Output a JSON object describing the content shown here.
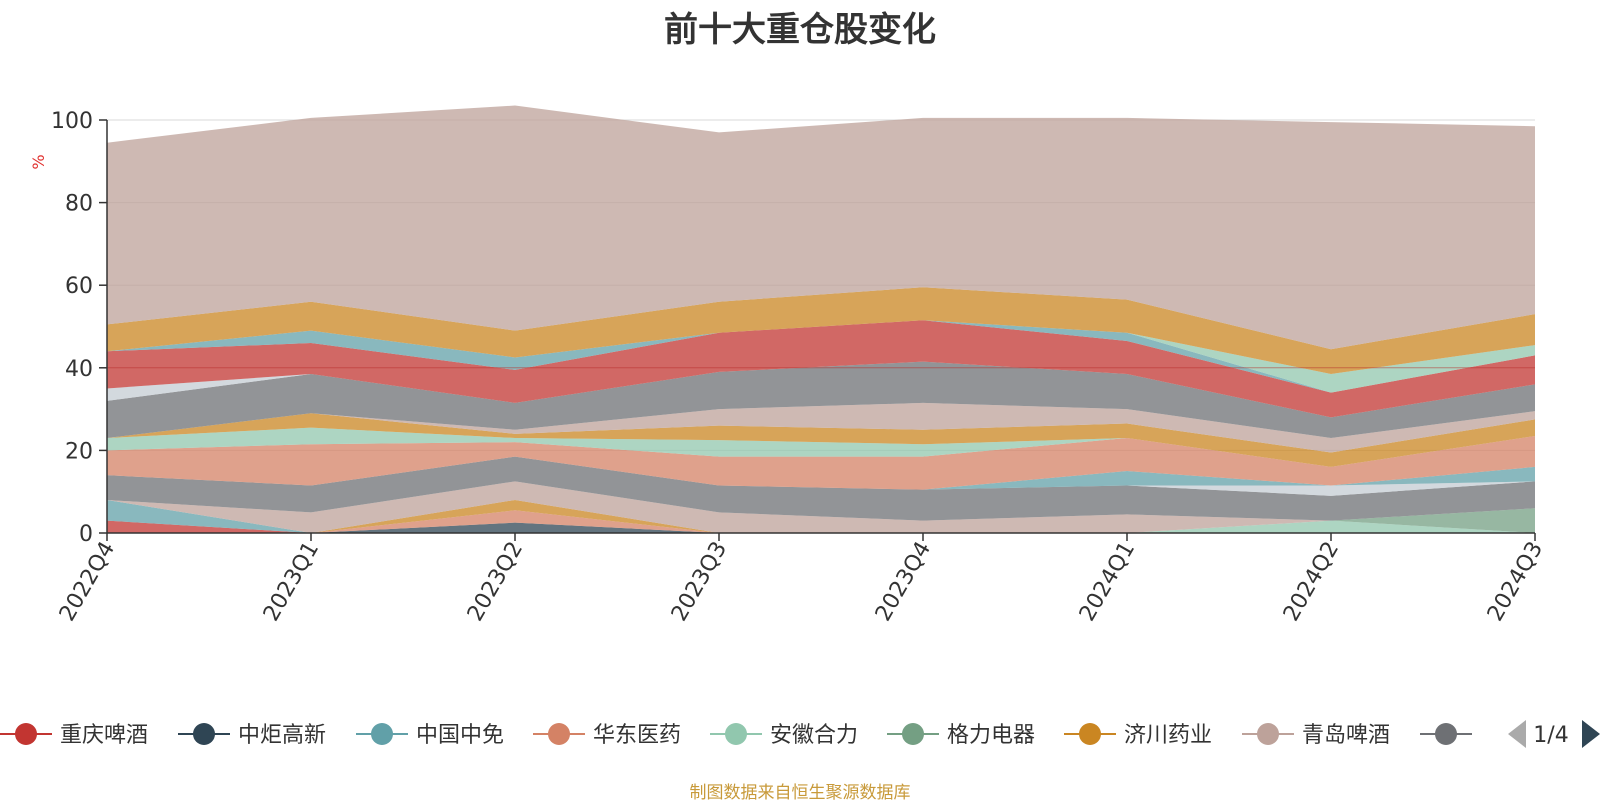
{
  "chart_data": {
    "type": "area",
    "title": "前十大重仓股变化",
    "ylabel": "%",
    "ylim": [
      0,
      100
    ],
    "yticks": [
      "0",
      "20",
      "40",
      "60",
      "80",
      "100"
    ],
    "categories": [
      "2022Q4",
      "2023Q1",
      "2023Q2",
      "2023Q3",
      "2023Q4",
      "2024Q1",
      "2024Q2",
      "2024Q3"
    ],
    "stacked": true,
    "grid": true,
    "series": [
      {
        "name": "重庆啤酒",
        "color": "#c23531",
        "values": [
          3,
          0,
          0,
          0,
          0,
          0,
          0,
          0
        ]
      },
      {
        "name": "中炬高新",
        "color": "#2f4554",
        "values": [
          0,
          0,
          2.5,
          0,
          0,
          0,
          0,
          0
        ]
      },
      {
        "name": "中国中免",
        "color": "#61a0a8",
        "values": [
          5,
          0,
          0,
          0,
          0,
          0,
          0,
          0
        ]
      },
      {
        "name": "华东医药",
        "color": "#d48265",
        "values": [
          0,
          0,
          3,
          0,
          0,
          0,
          0,
          0
        ]
      },
      {
        "name": "安徽合力",
        "color": "#91c7ae",
        "values": [
          0,
          0,
          0,
          0,
          0,
          0,
          3,
          0
        ]
      },
      {
        "name": "格力电器",
        "color": "#749f83",
        "values": [
          0,
          0,
          0,
          0,
          0,
          0,
          0,
          6
        ]
      },
      {
        "name": "济川药业",
        "color": "#ca8622",
        "values": [
          0,
          0,
          2.5,
          0,
          0,
          0,
          0,
          0
        ]
      },
      {
        "name": "青岛啤酒",
        "color": "#bda29a",
        "values": [
          0,
          5,
          4.5,
          5,
          3,
          4.5,
          0,
          0
        ]
      },
      {
        "name": "",
        "color": "#6e7074",
        "values": [
          6,
          6.5,
          6,
          6.5,
          7.5,
          7,
          6,
          6.5
        ]
      },
      {
        "name": "",
        "color": "#c4ccd3",
        "values": [
          0,
          0,
          0,
          0,
          0,
          0,
          2.5,
          0
        ]
      },
      {
        "name": "",
        "color": "#61a0a8",
        "values": [
          0,
          0,
          0,
          0,
          0,
          3.5,
          0,
          3.5
        ]
      },
      {
        "name": "",
        "color": "#d48265",
        "values": [
          6,
          10,
          3.5,
          7,
          8,
          8,
          4.5,
          7.5
        ]
      },
      {
        "name": "",
        "color": "#91c7ae",
        "values": [
          3,
          4,
          1,
          4,
          3,
          0,
          0,
          0
        ]
      },
      {
        "name": "",
        "color": "#ca8622",
        "values": [
          0,
          3.5,
          1,
          3.5,
          3.5,
          3.5,
          3.5,
          4
        ]
      },
      {
        "name": "",
        "color": "#bda29a",
        "values": [
          0,
          0,
          1,
          4,
          6.5,
          3.5,
          3.5,
          2
        ]
      },
      {
        "name": "",
        "color": "#6e7074",
        "values": [
          9,
          9.5,
          6.5,
          9,
          10,
          8.5,
          5,
          6.5
        ]
      },
      {
        "name": "",
        "color": "#c4ccd3",
        "values": [
          3,
          0,
          0,
          0,
          0,
          0,
          0,
          0
        ]
      },
      {
        "name": "",
        "color": "#c23531",
        "values": [
          9,
          7.5,
          8,
          9.5,
          10,
          8,
          6,
          7
        ]
      },
      {
        "name": "",
        "color": "#61a0a8",
        "values": [
          0,
          3,
          3,
          0,
          0,
          2,
          0,
          0
        ]
      },
      {
        "name": "",
        "color": "#91c7ae",
        "values": [
          0,
          0,
          0,
          0,
          0,
          0,
          4.5,
          2.5
        ]
      },
      {
        "name": "",
        "color": "#ca8622",
        "values": [
          6.5,
          7,
          6.5,
          7.5,
          8,
          8,
          6,
          7.5
        ]
      },
      {
        "name": "",
        "color": "#bda29a",
        "values": [
          44,
          44.5,
          54.5,
          41,
          41,
          44,
          55,
          45.5
        ]
      }
    ]
  },
  "legend": {
    "items": [
      {
        "name": "重庆啤酒",
        "color": "#c23531"
      },
      {
        "name": "中炬高新",
        "color": "#2f4554"
      },
      {
        "name": "中国中免",
        "color": "#61a0a8"
      },
      {
        "name": "华东医药",
        "color": "#d48265"
      },
      {
        "name": "安徽合力",
        "color": "#91c7ae"
      },
      {
        "name": "格力电器",
        "color": "#749f83"
      },
      {
        "name": "济川药业",
        "color": "#ca8622"
      },
      {
        "name": "青岛啤酒",
        "color": "#bda29a"
      },
      {
        "name": "",
        "color": "#6e7074"
      }
    ],
    "page": "1/4"
  },
  "source_note": "制图数据来自恒生聚源数据库"
}
